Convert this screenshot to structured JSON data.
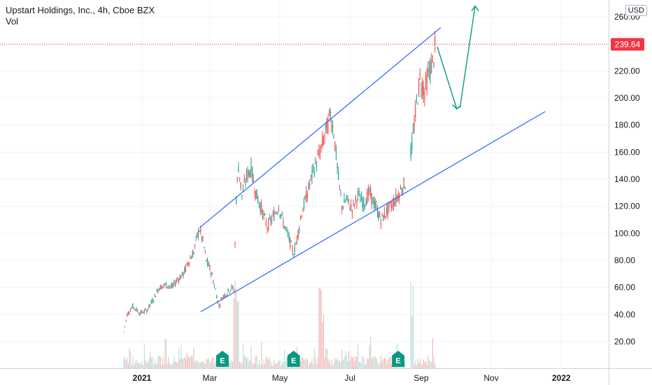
{
  "header": {
    "title": "Upstart Holdings, Inc., 4h, Cboe BZX",
    "volume_label": "Vol",
    "currency": "USD"
  },
  "colors": {
    "up": "#26a69a",
    "down": "#ef5350",
    "trendline": "#2962ff",
    "arrow": "#089981",
    "price_line": "#f23645",
    "vol_up": "#b2dfdb",
    "vol_down": "#f5b7b5",
    "earnings": "#089981"
  },
  "current_price": {
    "value": 239.64,
    "label": "239.64"
  },
  "chart_data": {
    "type": "candlestick",
    "title": "Upstart Holdings, Inc., 4h, Cboe BZX",
    "ylim": [
      0,
      265
    ],
    "y_ticks": [
      20,
      40,
      60,
      80,
      100,
      120,
      140,
      160,
      180,
      200,
      220,
      240,
      260
    ],
    "y_tick_labels": [
      "20.00",
      "40.00",
      "60.00",
      "80.00",
      "100.00",
      "120.00",
      "140.00",
      "160.00",
      "180.00",
      "200.00",
      "220.00",
      "240.00",
      "260.00"
    ],
    "x_ticks": [
      {
        "date": "2021-01-01",
        "label": "2021",
        "bold": true
      },
      {
        "date": "2021-03-01",
        "label": "Mar",
        "bold": false
      },
      {
        "date": "2021-05-01",
        "label": "May",
        "bold": false
      },
      {
        "date": "2021-07-01",
        "label": "Jul",
        "bold": false
      },
      {
        "date": "2021-09-01",
        "label": "Sep",
        "bold": false
      },
      {
        "date": "2021-11-01",
        "label": "Nov",
        "bold": false
      },
      {
        "date": "2022-01-01",
        "label": "2022",
        "bold": true
      }
    ],
    "price_path": [
      [
        "2020-12-16",
        27
      ],
      [
        "2020-12-19",
        40
      ],
      [
        "2020-12-24",
        46
      ],
      [
        "2020-12-30",
        41
      ],
      [
        "2021-01-05",
        43
      ],
      [
        "2021-01-10",
        50
      ],
      [
        "2021-01-16",
        60
      ],
      [
        "2021-01-22",
        62
      ],
      [
        "2021-01-27",
        60
      ],
      [
        "2021-02-01",
        66
      ],
      [
        "2021-02-06",
        70
      ],
      [
        "2021-02-11",
        80
      ],
      [
        "2021-02-15",
        86
      ],
      [
        "2021-02-18",
        98
      ],
      [
        "2021-02-20",
        103
      ],
      [
        "2021-02-23",
        94
      ],
      [
        "2021-02-26",
        80
      ],
      [
        "2021-03-02",
        72
      ],
      [
        "2021-03-06",
        58
      ],
      [
        "2021-03-09",
        46
      ],
      [
        "2021-03-12",
        53
      ],
      [
        "2021-03-16",
        56
      ],
      [
        "2021-03-20",
        60
      ],
      [
        "2021-03-22",
        58
      ],
      [
        "2021-03-24",
        126
      ],
      [
        "2021-03-26",
        150
      ],
      [
        "2021-03-29",
        128
      ],
      [
        "2021-04-02",
        142
      ],
      [
        "2021-04-06",
        148
      ],
      [
        "2021-04-10",
        130
      ],
      [
        "2021-04-15",
        118
      ],
      [
        "2021-04-20",
        105
      ],
      [
        "2021-04-25",
        112
      ],
      [
        "2021-04-30",
        120
      ],
      [
        "2021-05-04",
        108
      ],
      [
        "2021-05-09",
        96
      ],
      [
        "2021-05-13",
        85
      ],
      [
        "2021-05-15",
        92
      ],
      [
        "2021-05-20",
        115
      ],
      [
        "2021-05-25",
        130
      ],
      [
        "2021-05-30",
        146
      ],
      [
        "2021-06-05",
        160
      ],
      [
        "2021-06-10",
        175
      ],
      [
        "2021-06-14",
        188
      ],
      [
        "2021-06-17",
        175
      ],
      [
        "2021-06-21",
        140
      ],
      [
        "2021-06-24",
        120
      ],
      [
        "2021-06-28",
        125
      ],
      [
        "2021-07-03",
        118
      ],
      [
        "2021-07-08",
        128
      ],
      [
        "2021-07-13",
        122
      ],
      [
        "2021-07-18",
        130
      ],
      [
        "2021-07-23",
        120
      ],
      [
        "2021-07-28",
        110
      ],
      [
        "2021-08-02",
        116
      ],
      [
        "2021-08-07",
        122
      ],
      [
        "2021-08-12",
        128
      ],
      [
        "2021-08-16",
        135
      ],
      [
        "2021-08-19",
        138
      ],
      [
        "2021-08-21",
        null
      ],
      [
        "2021-08-23",
        160
      ],
      [
        "2021-08-25",
        172
      ],
      [
        "2021-08-28",
        196
      ],
      [
        "2021-08-31",
        214
      ],
      [
        "2021-09-04",
        205
      ],
      [
        "2021-09-08",
        220
      ],
      [
        "2021-09-11",
        226
      ],
      [
        "2021-09-13",
        236
      ],
      [
        "2021-09-14",
        239.64
      ]
    ],
    "volume": {
      "base_pixel": 526,
      "note_spikes": [
        "2021-03-24",
        "2021-06-06",
        "2021-08-23"
      ]
    },
    "trendlines": [
      {
        "name": "upper-channel",
        "from": [
          "2021-02-20",
          104
        ],
        "to": [
          "2021-09-18",
          252
        ]
      },
      {
        "name": "lower-support",
        "from": [
          "2021-02-21",
          42
        ],
        "to": [
          "2021-12-18",
          190
        ]
      }
    ],
    "projection_arrow": [
      [
        "2021-09-15",
        238
      ],
      [
        "2021-10-02",
        192
      ],
      [
        "2021-10-05",
        194
      ],
      [
        "2021-10-18",
        268
      ]
    ],
    "earnings_markers": [
      {
        "date": "2021-03-12",
        "label": "E"
      },
      {
        "date": "2021-05-13",
        "label": "E"
      },
      {
        "date": "2021-08-12",
        "label": "E"
      }
    ]
  }
}
